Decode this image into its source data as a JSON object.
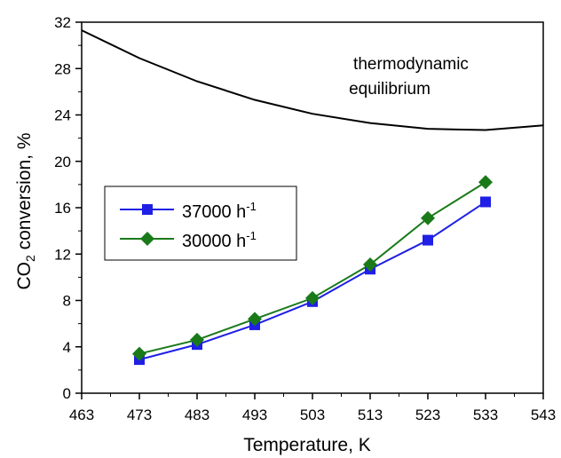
{
  "chart_data": {
    "type": "line",
    "xlabel": "Temperature, K",
    "ylabel": {
      "main": "CO",
      "sub": "2",
      "rest": " conversion, %"
    },
    "xlim": [
      463,
      543
    ],
    "ylim": [
      0,
      32
    ],
    "xticks": [
      463,
      473,
      483,
      493,
      503,
      513,
      523,
      533,
      543
    ],
    "yticks": [
      0,
      4,
      8,
      12,
      16,
      20,
      24,
      28,
      32
    ],
    "grid": false,
    "legend_position": "middle-left",
    "series": [
      {
        "name": {
          "base": "37000 h",
          "sup": "-1"
        },
        "color": "#1f1fe6",
        "marker": "square",
        "x": [
          473,
          483,
          493,
          503,
          513,
          523,
          533
        ],
        "y": [
          2.9,
          4.2,
          5.9,
          7.9,
          10.7,
          13.2,
          16.5
        ]
      },
      {
        "name": {
          "base": "30000 h",
          "sup": "-1"
        },
        "color": "#1a7a1a",
        "marker": "diamond",
        "x": [
          473,
          483,
          493,
          503,
          513,
          523,
          533
        ],
        "y": [
          3.4,
          4.6,
          6.4,
          8.2,
          11.1,
          15.1,
          18.2
        ]
      }
    ],
    "equilibrium_curve": {
      "color": "#000000",
      "x": [
        463,
        473,
        483,
        493,
        503,
        513,
        523,
        533,
        543
      ],
      "y": [
        31.3,
        28.9,
        26.9,
        25.3,
        24.1,
        23.3,
        22.8,
        22.7,
        23.1
      ]
    },
    "annotation": {
      "line1": "thermodynamic",
      "line2": "equilibrium"
    }
  }
}
